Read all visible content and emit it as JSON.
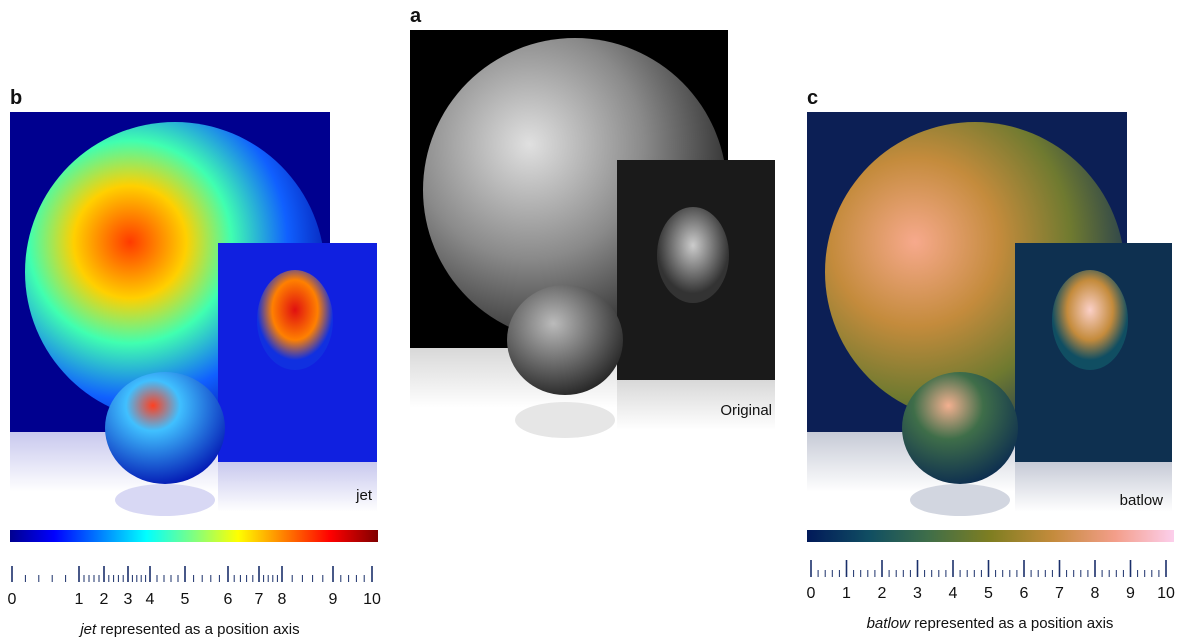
{
  "panels": {
    "a": {
      "label": "a",
      "caption": "Original"
    },
    "b": {
      "label": "b",
      "caption": "jet"
    },
    "c": {
      "label": "c",
      "caption": "batlow"
    }
  },
  "jet_axis": {
    "ticks": [
      0,
      1,
      2,
      3,
      4,
      5,
      6,
      7,
      8,
      9,
      10
    ],
    "caption_term": "jet",
    "caption_rest": " represented as a position axis"
  },
  "batlow_axis": {
    "ticks": [
      0,
      1,
      2,
      3,
      4,
      5,
      6,
      7,
      8,
      9,
      10
    ],
    "caption_term": "batlow",
    "caption_rest": " represented as a position axis"
  }
}
